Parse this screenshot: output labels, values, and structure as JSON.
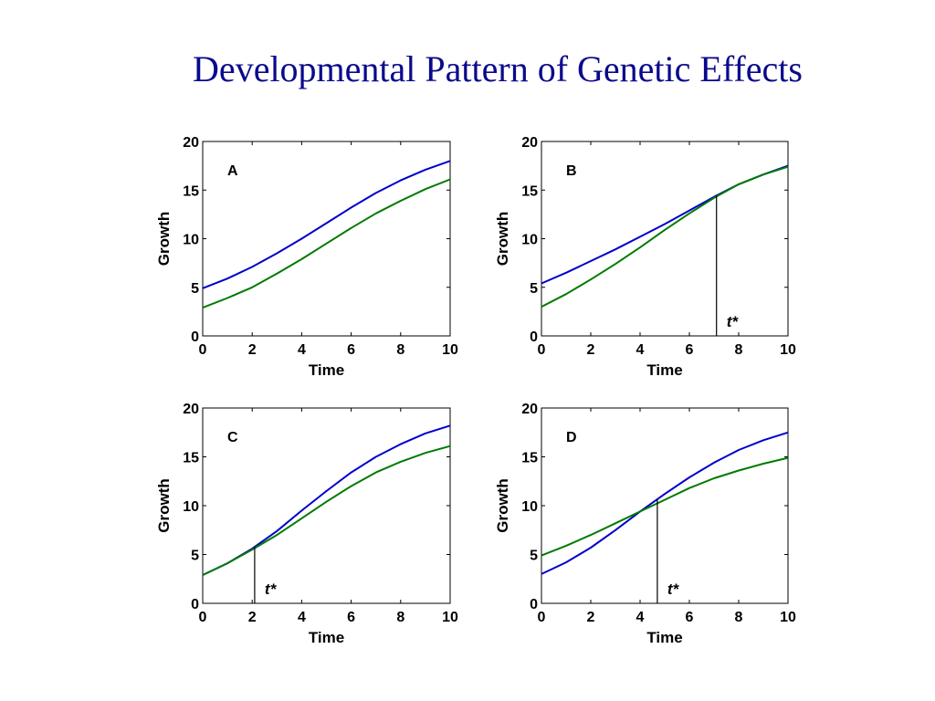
{
  "slide": {
    "title": "Developmental Pattern of Genetic Effects"
  },
  "chart_data": [
    {
      "type": "line",
      "panel_label": "A",
      "xlabel": "Time",
      "ylabel": "Growth",
      "xlim": [
        0,
        10
      ],
      "ylim": [
        0,
        20
      ],
      "xticks": [
        0,
        2,
        4,
        6,
        8,
        10
      ],
      "yticks": [
        0,
        5,
        10,
        15,
        20
      ],
      "grid": false,
      "x": [
        0,
        1,
        2,
        3,
        4,
        5,
        6,
        7,
        8,
        9,
        10
      ],
      "series": [
        {
          "color": "#0000cc",
          "values": [
            4.9,
            5.9,
            7.1,
            8.5,
            10.0,
            11.6,
            13.2,
            14.7,
            16.0,
            17.1,
            18.0
          ]
        },
        {
          "color": "#007a00",
          "values": [
            2.9,
            3.9,
            5.0,
            6.4,
            7.9,
            9.5,
            11.1,
            12.6,
            13.9,
            15.1,
            16.1
          ]
        }
      ]
    },
    {
      "type": "line",
      "panel_label": "B",
      "xlabel": "Time",
      "ylabel": "Growth",
      "xlim": [
        0,
        10
      ],
      "ylim": [
        0,
        20
      ],
      "xticks": [
        0,
        2,
        4,
        6,
        8,
        10
      ],
      "yticks": [
        0,
        5,
        10,
        15,
        20
      ],
      "grid": false,
      "x": [
        0,
        1,
        2,
        3,
        4,
        5,
        6,
        7,
        8,
        9,
        10
      ],
      "series": [
        {
          "color": "#0000cc",
          "values": [
            5.4,
            6.5,
            7.7,
            8.9,
            10.2,
            11.5,
            12.9,
            14.3,
            15.6,
            16.6,
            17.5
          ]
        },
        {
          "color": "#007a00",
          "values": [
            3.0,
            4.3,
            5.8,
            7.4,
            9.1,
            10.9,
            12.6,
            14.2,
            15.6,
            16.6,
            17.4
          ]
        }
      ],
      "marker": {
        "x": 7.1,
        "label": "t*"
      }
    },
    {
      "type": "line",
      "panel_label": "C",
      "xlabel": "Time",
      "ylabel": "Growth",
      "xlim": [
        0,
        10
      ],
      "ylim": [
        0,
        20
      ],
      "xticks": [
        0,
        2,
        4,
        6,
        8,
        10
      ],
      "yticks": [
        0,
        5,
        10,
        15,
        20
      ],
      "grid": false,
      "x": [
        0,
        1,
        2,
        3,
        4,
        5,
        6,
        7,
        8,
        9,
        10
      ],
      "series": [
        {
          "color": "#0000cc",
          "values": [
            2.9,
            4.1,
            5.6,
            7.4,
            9.5,
            11.5,
            13.4,
            15.0,
            16.3,
            17.4,
            18.2
          ]
        },
        {
          "color": "#007a00",
          "values": [
            2.9,
            4.1,
            5.5,
            7.0,
            8.7,
            10.4,
            12.0,
            13.4,
            14.5,
            15.4,
            16.1
          ]
        }
      ],
      "marker": {
        "x": 2.1,
        "label": "t*"
      }
    },
    {
      "type": "line",
      "panel_label": "D",
      "xlabel": "Time",
      "ylabel": "Growth",
      "xlim": [
        0,
        10
      ],
      "ylim": [
        0,
        20
      ],
      "xticks": [
        0,
        2,
        4,
        6,
        8,
        10
      ],
      "yticks": [
        0,
        5,
        10,
        15,
        20
      ],
      "grid": false,
      "x": [
        0,
        1,
        2,
        3,
        4,
        5,
        6,
        7,
        8,
        9,
        10
      ],
      "series": [
        {
          "color": "#0000cc",
          "values": [
            3.0,
            4.2,
            5.7,
            7.5,
            9.4,
            11.2,
            12.9,
            14.4,
            15.7,
            16.7,
            17.5
          ]
        },
        {
          "color": "#007a00",
          "values": [
            4.9,
            5.9,
            7.0,
            8.2,
            9.4,
            10.6,
            11.8,
            12.8,
            13.6,
            14.3,
            14.9
          ]
        }
      ],
      "marker": {
        "x": 4.7,
        "label": "t*"
      }
    }
  ]
}
